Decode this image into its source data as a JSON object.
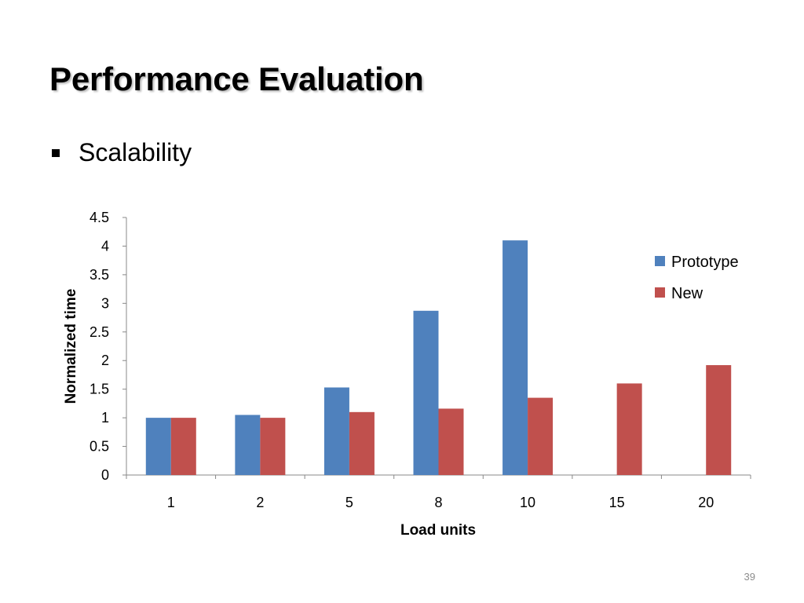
{
  "slide": {
    "title": "Performance Evaluation",
    "bullet": "Scalability",
    "bullet_icon": "square-bullet-icon",
    "page_number": "39"
  },
  "chart_data": {
    "type": "bar",
    "categories": [
      "1",
      "2",
      "5",
      "8",
      "10",
      "15",
      "20"
    ],
    "series": [
      {
        "name": "Prototype",
        "color": "#4F81BD",
        "values": [
          1.0,
          1.05,
          1.53,
          2.87,
          4.1,
          null,
          null
        ]
      },
      {
        "name": "New",
        "color": "#C0504D",
        "values": [
          1.0,
          1.0,
          1.1,
          1.16,
          1.35,
          1.6,
          1.92
        ]
      }
    ],
    "xlabel": "Load units",
    "ylabel": "Normalized time",
    "ylim": [
      0,
      4.5
    ],
    "yticks": [
      "0",
      "0.5",
      "1",
      "1.5",
      "2",
      "2.5",
      "3",
      "3.5",
      "4",
      "4.5"
    ],
    "grid": false,
    "legend": "right"
  }
}
